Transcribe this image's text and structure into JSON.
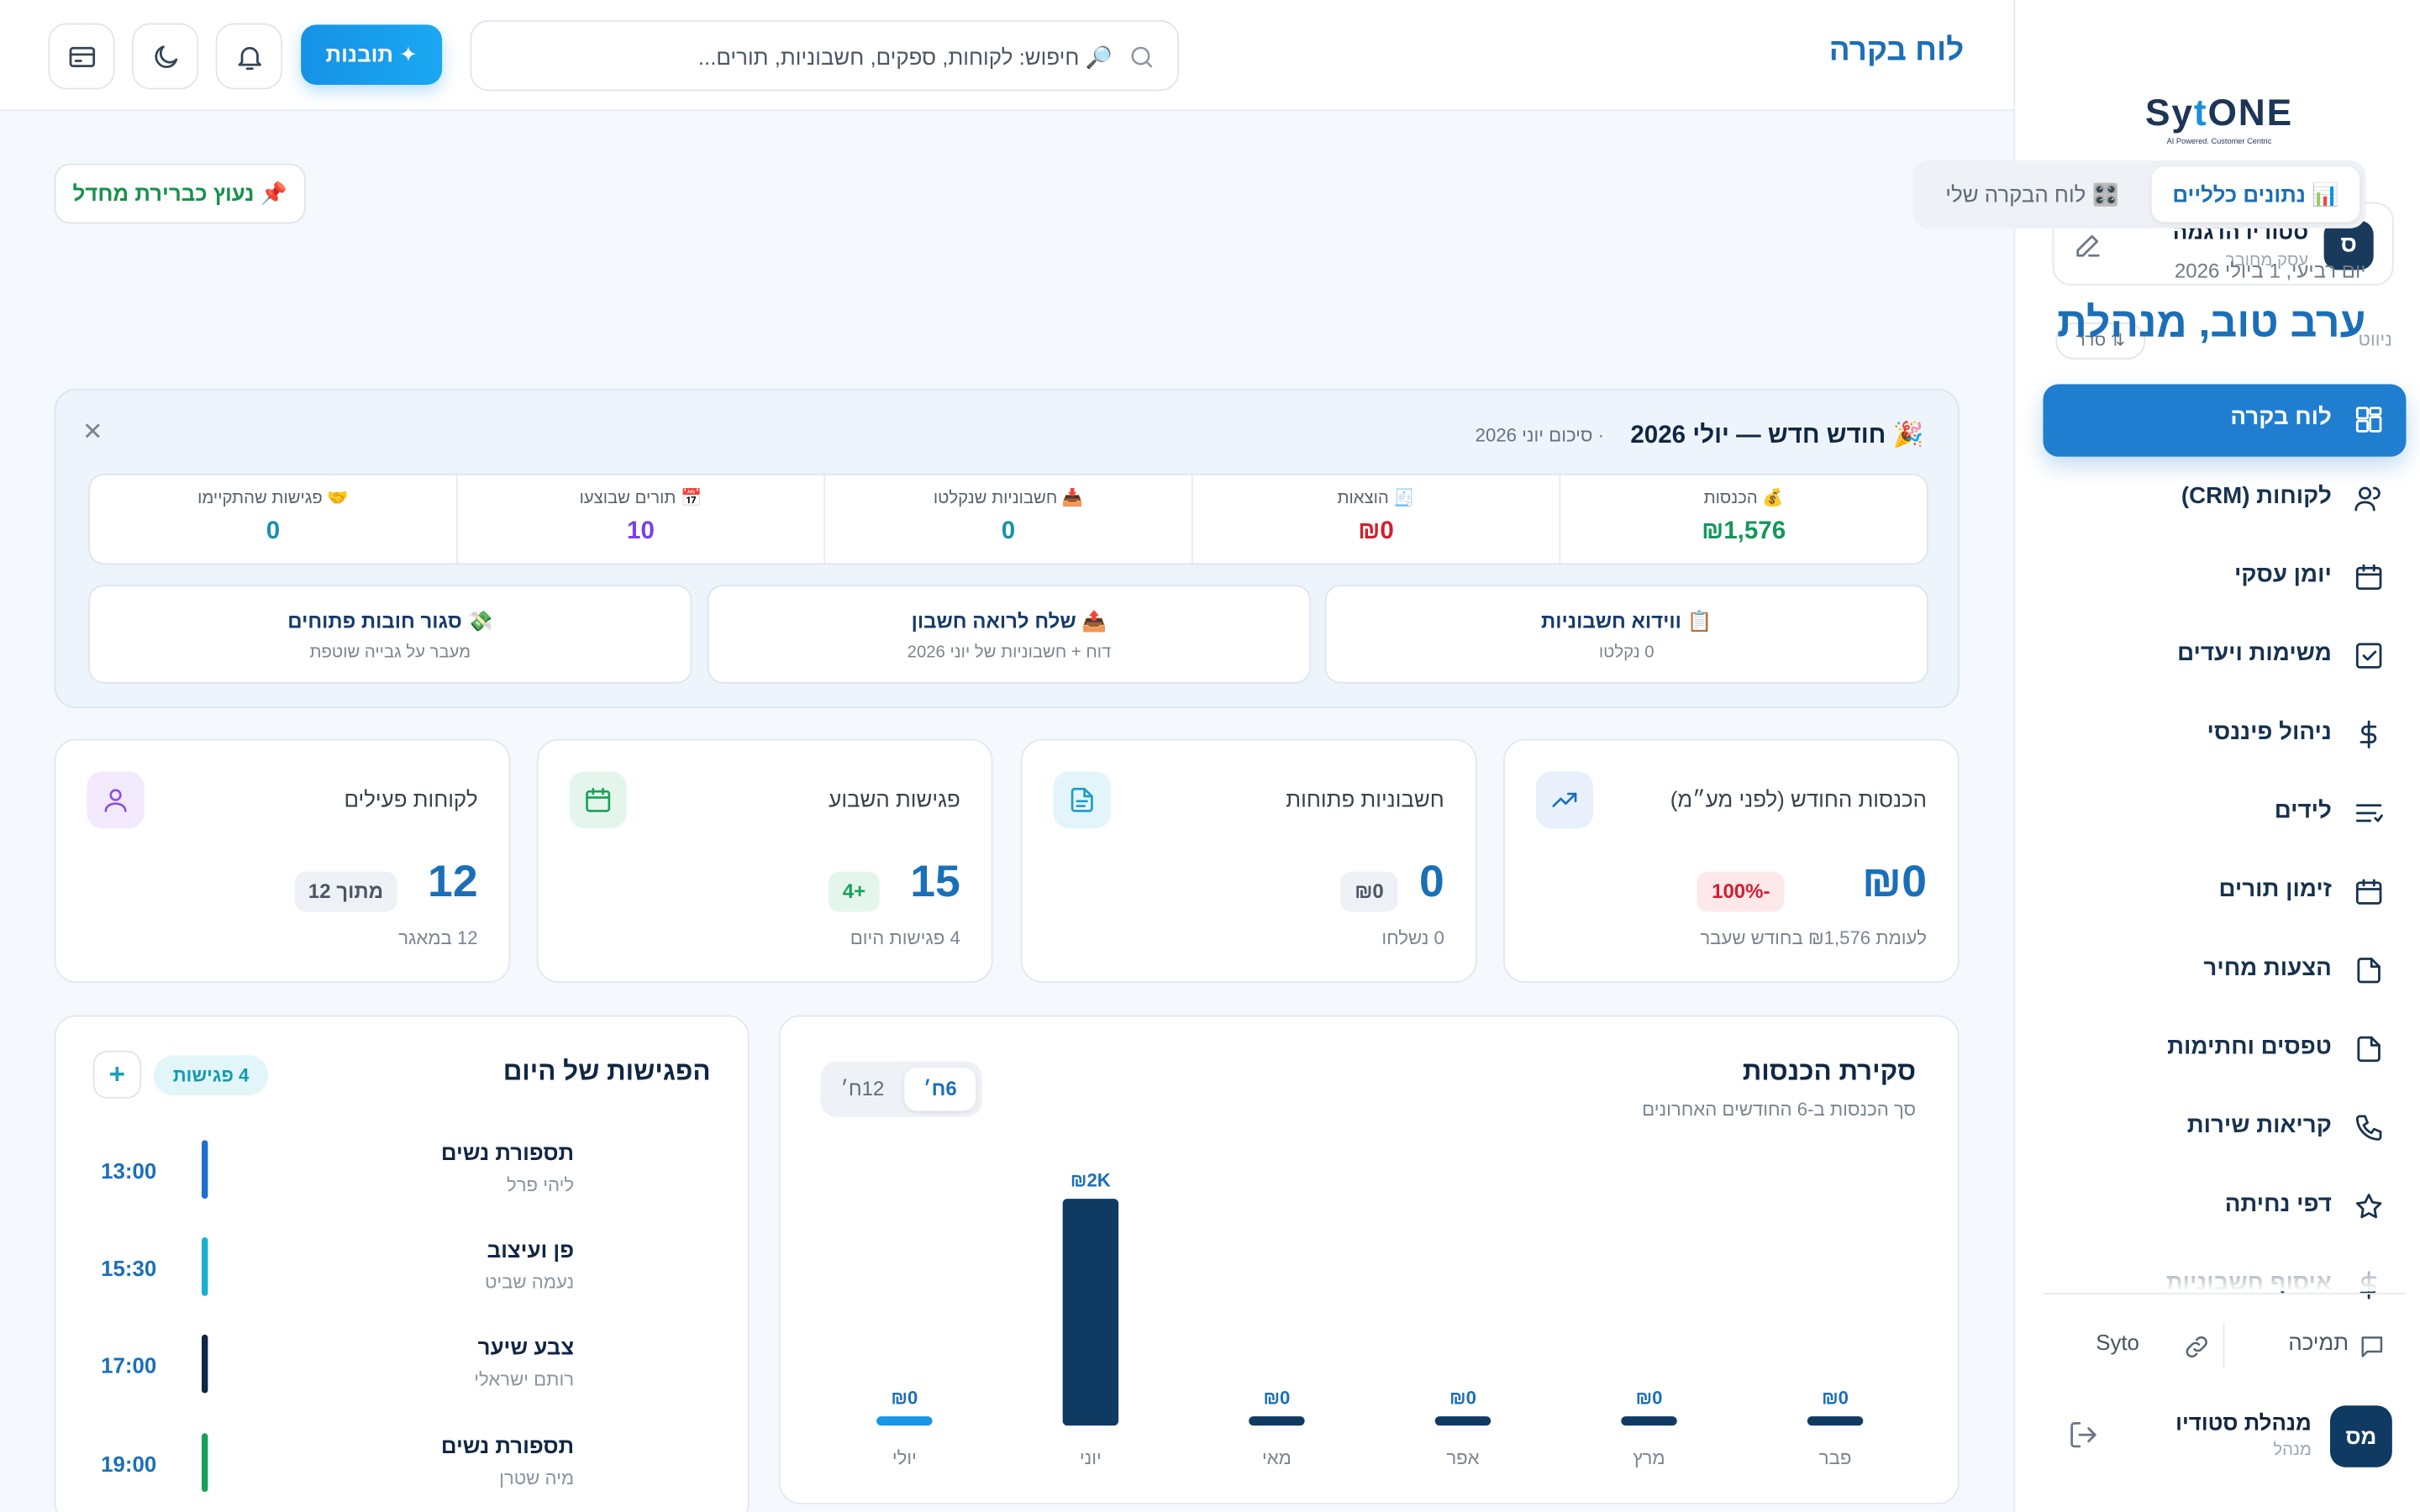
{
  "app": {
    "logo_text_a": "Sy",
    "logo_text_b": "t",
    "logo_text_c": "ONE",
    "logo_tagline": "AI Powered. Customer Centric"
  },
  "workspace": {
    "avatar": "ס",
    "name": "סטודיו הדגמה",
    "subtitle": "עסק מחובר"
  },
  "sidebar": {
    "nav_label": "ניווט",
    "sort_label": "⇅ סדר",
    "items": [
      {
        "label": "לוח בקרה",
        "icon": "dashboard-icon",
        "active": true
      },
      {
        "label": "לקוחות (CRM)",
        "icon": "users-icon"
      },
      {
        "label": "יומן עסקי",
        "icon": "calendar-icon"
      },
      {
        "label": "משימות ויעדים",
        "icon": "checkbox-icon"
      },
      {
        "label": "ניהול פיננסי",
        "icon": "dollar-icon"
      },
      {
        "label": "לידים",
        "icon": "list-icon"
      },
      {
        "label": "זימון תורים",
        "icon": "calendar-icon"
      },
      {
        "label": "הצעות מחיר",
        "icon": "file-icon"
      },
      {
        "label": "טפסים וחתימות",
        "icon": "file-icon"
      },
      {
        "label": "קריאות שירות",
        "icon": "phone-icon"
      },
      {
        "label": "דפי נחיתה",
        "icon": "star-icon"
      },
      {
        "label": "איסוף חשבוניות",
        "icon": "dollar-icon"
      }
    ],
    "support_label": "תמיכה",
    "syto_label": "Syto",
    "user": {
      "avatar": "מס",
      "name": "מנהלת סטודיו",
      "role": "מנהל"
    }
  },
  "header": {
    "title": "לוח בקרה",
    "search_placeholder": "🔎 חיפוש: לקוחות, ספקים, חשבוניות, תורים...",
    "insights_label": "✦  תובנות"
  },
  "tabs": {
    "overview": "📊 נתונים כלליים",
    "my_dashboard": "🎛️ לוח הבקרה שלי"
  },
  "pin_label": "📌  נעוץ כברירת מחדל",
  "date": "יום רביעי, 1 ביולי 2026",
  "greeting": "ערב טוב, מנהלת",
  "summary": {
    "title": "🎉 חודש חדש — יולי 2026",
    "subtitle": "· סיכום יוני 2026",
    "stats": [
      {
        "label": "💰 הכנסות",
        "value": "₪1,576",
        "color": "#14975a"
      },
      {
        "label": "🧾 הוצאות",
        "value": "₪0",
        "color": "#d11f2e"
      },
      {
        "label": "📥 חשבוניות שנקלטו",
        "value": "0",
        "color": "#1a8fb0"
      },
      {
        "label": "📅 תורים שבוצעו",
        "value": "10",
        "color": "#7b3fe4"
      },
      {
        "label": "🤝 פגישות שהתקיימו",
        "value": "0",
        "color": "#1a8fb0"
      }
    ],
    "actions": [
      {
        "title": "📋 ווידוא חשבוניות",
        "sub": "0 נקלטו"
      },
      {
        "title": "📤 שלח לרואה חשבון",
        "sub": "דוח + חשבוניות של יוני 2026"
      },
      {
        "title": "💸 סגור חובות פתוחים",
        "sub": "מעבר על גבייה שוטפת"
      }
    ]
  },
  "kpis": [
    {
      "title": "הכנסות החודש (לפני מע״מ)",
      "value": "₪0",
      "badge": "-100%",
      "foot": "לעומת ₪1,576 בחודש שעבר",
      "icon": "trending-up-icon",
      "icon_bg": "#e8f0fb",
      "icon_color": "#1b6fb8",
      "badge_bg": "#fde8ea",
      "badge_fg": "#d11f2e"
    },
    {
      "title": "חשבוניות פתוחות",
      "value": "0",
      "badge": "₪0",
      "foot": "0 נשלחו",
      "icon": "document-icon",
      "icon_bg": "#e3f5fa",
      "icon_color": "#1a9cc4",
      "badge_bg": "#eef1f5",
      "badge_fg": "#4a5564"
    },
    {
      "title": "פגישות השבוע",
      "value": "15",
      "badge": "+4",
      "foot": "4 פגישות היום",
      "icon": "calendar-icon",
      "icon_bg": "#e4f6ec",
      "icon_color": "#18a05a",
      "badge_bg": "#e4f6ec",
      "badge_fg": "#18a05a"
    },
    {
      "title": "לקוחות פעילים",
      "value": "12",
      "badge": "מתוך 12",
      "foot": "12 במאגר",
      "icon": "user-icon",
      "icon_bg": "#f2eafc",
      "icon_color": "#8b4fe0",
      "badge_bg": "#eef1f5",
      "badge_fg": "#4a5564"
    }
  ],
  "revenue": {
    "title": "סקירת הכנסות",
    "subtitle": "סך הכנסות ב-6 החודשים האחרונים",
    "toggle_6m": "6ח׳",
    "toggle_12m": "12ח׳"
  },
  "chart_data": {
    "type": "bar",
    "categories": [
      "פבר",
      "מרץ",
      "אפר",
      "מאי",
      "יוני",
      "יולי"
    ],
    "values": [
      0,
      0,
      0,
      0,
      1576,
      0
    ],
    "value_labels": [
      "₪0",
      "₪0",
      "₪0",
      "₪0",
      "₪2K",
      "₪0"
    ],
    "title": "סקירת הכנסות",
    "xlabel": "",
    "ylabel": "",
    "ylim": [
      0,
      1576
    ],
    "grid": false,
    "colors": {
      "bar": "#0f3b63",
      "current": "#1a96e8"
    }
  },
  "meetings": {
    "title": "הפגישות של היום",
    "count_label": "4 פגישות",
    "add_label": "+",
    "items": [
      {
        "time": "13:00",
        "name": "תספורת נשים",
        "who": "ליהי פרל",
        "color": "#1f6fd1"
      },
      {
        "time": "15:30",
        "name": "פן ועיצוב",
        "who": "נעמה שביט",
        "color": "#1ab0d0"
      },
      {
        "time": "17:00",
        "name": "צבע שיער",
        "who": "רותם ישראלי",
        "color": "#0f2744"
      },
      {
        "time": "19:00",
        "name": "תספורת נשים",
        "who": "מיה שטרן",
        "color": "#18a05a"
      }
    ]
  }
}
